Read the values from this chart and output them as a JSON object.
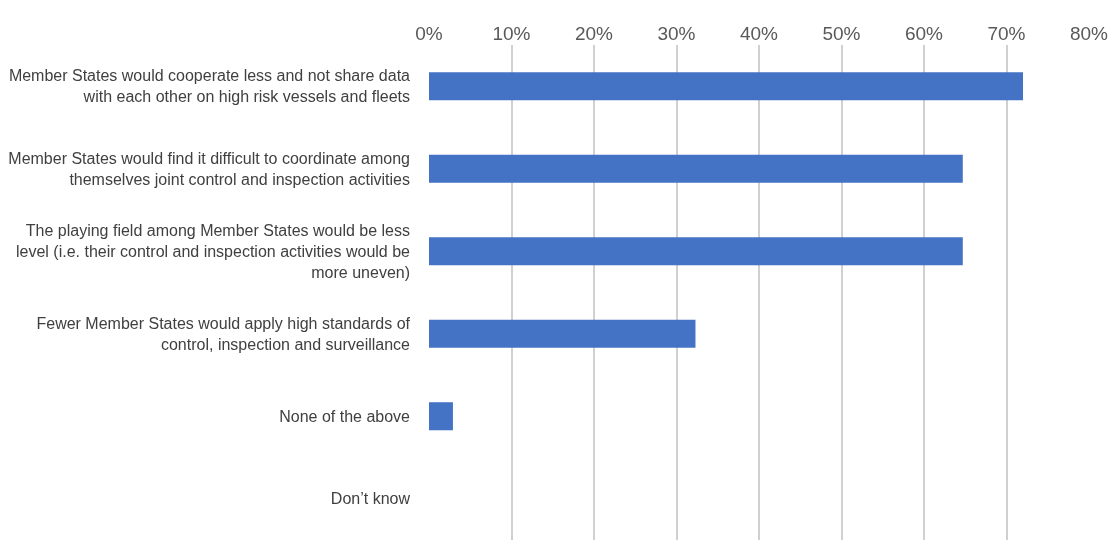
{
  "chart_data": {
    "type": "bar",
    "orientation": "horizontal",
    "categories": [
      "Member States would cooperate less and not share data\nwith each other on high risk vessels and fleets",
      "Member States would find it difficult to coordinate among\nthemselves joint control and inspection activities",
      "The playing field among Member States would be less\nlevel (i.e. their control and inspection activities would be\nmore uneven)",
      "Fewer Member States would apply high standards of\ncontrol, inspection and surveillance",
      "None of the above",
      "Don’t know"
    ],
    "values": [
      72.0,
      64.7,
      64.7,
      32.3,
      2.9,
      0
    ],
    "color": "#4472c4",
    "xlim": [
      0,
      80
    ],
    "xticks": [
      {
        "value": 0,
        "label": "0%"
      },
      {
        "value": 10,
        "label": "10%"
      },
      {
        "value": 20,
        "label": "20%"
      },
      {
        "value": 30,
        "label": "30%"
      },
      {
        "value": 40,
        "label": "40%"
      },
      {
        "value": 50,
        "label": "50%"
      },
      {
        "value": 60,
        "label": "60%"
      },
      {
        "value": 70,
        "label": "70%"
      },
      {
        "value": 80,
        "label": "80%"
      }
    ],
    "grid": "x"
  }
}
